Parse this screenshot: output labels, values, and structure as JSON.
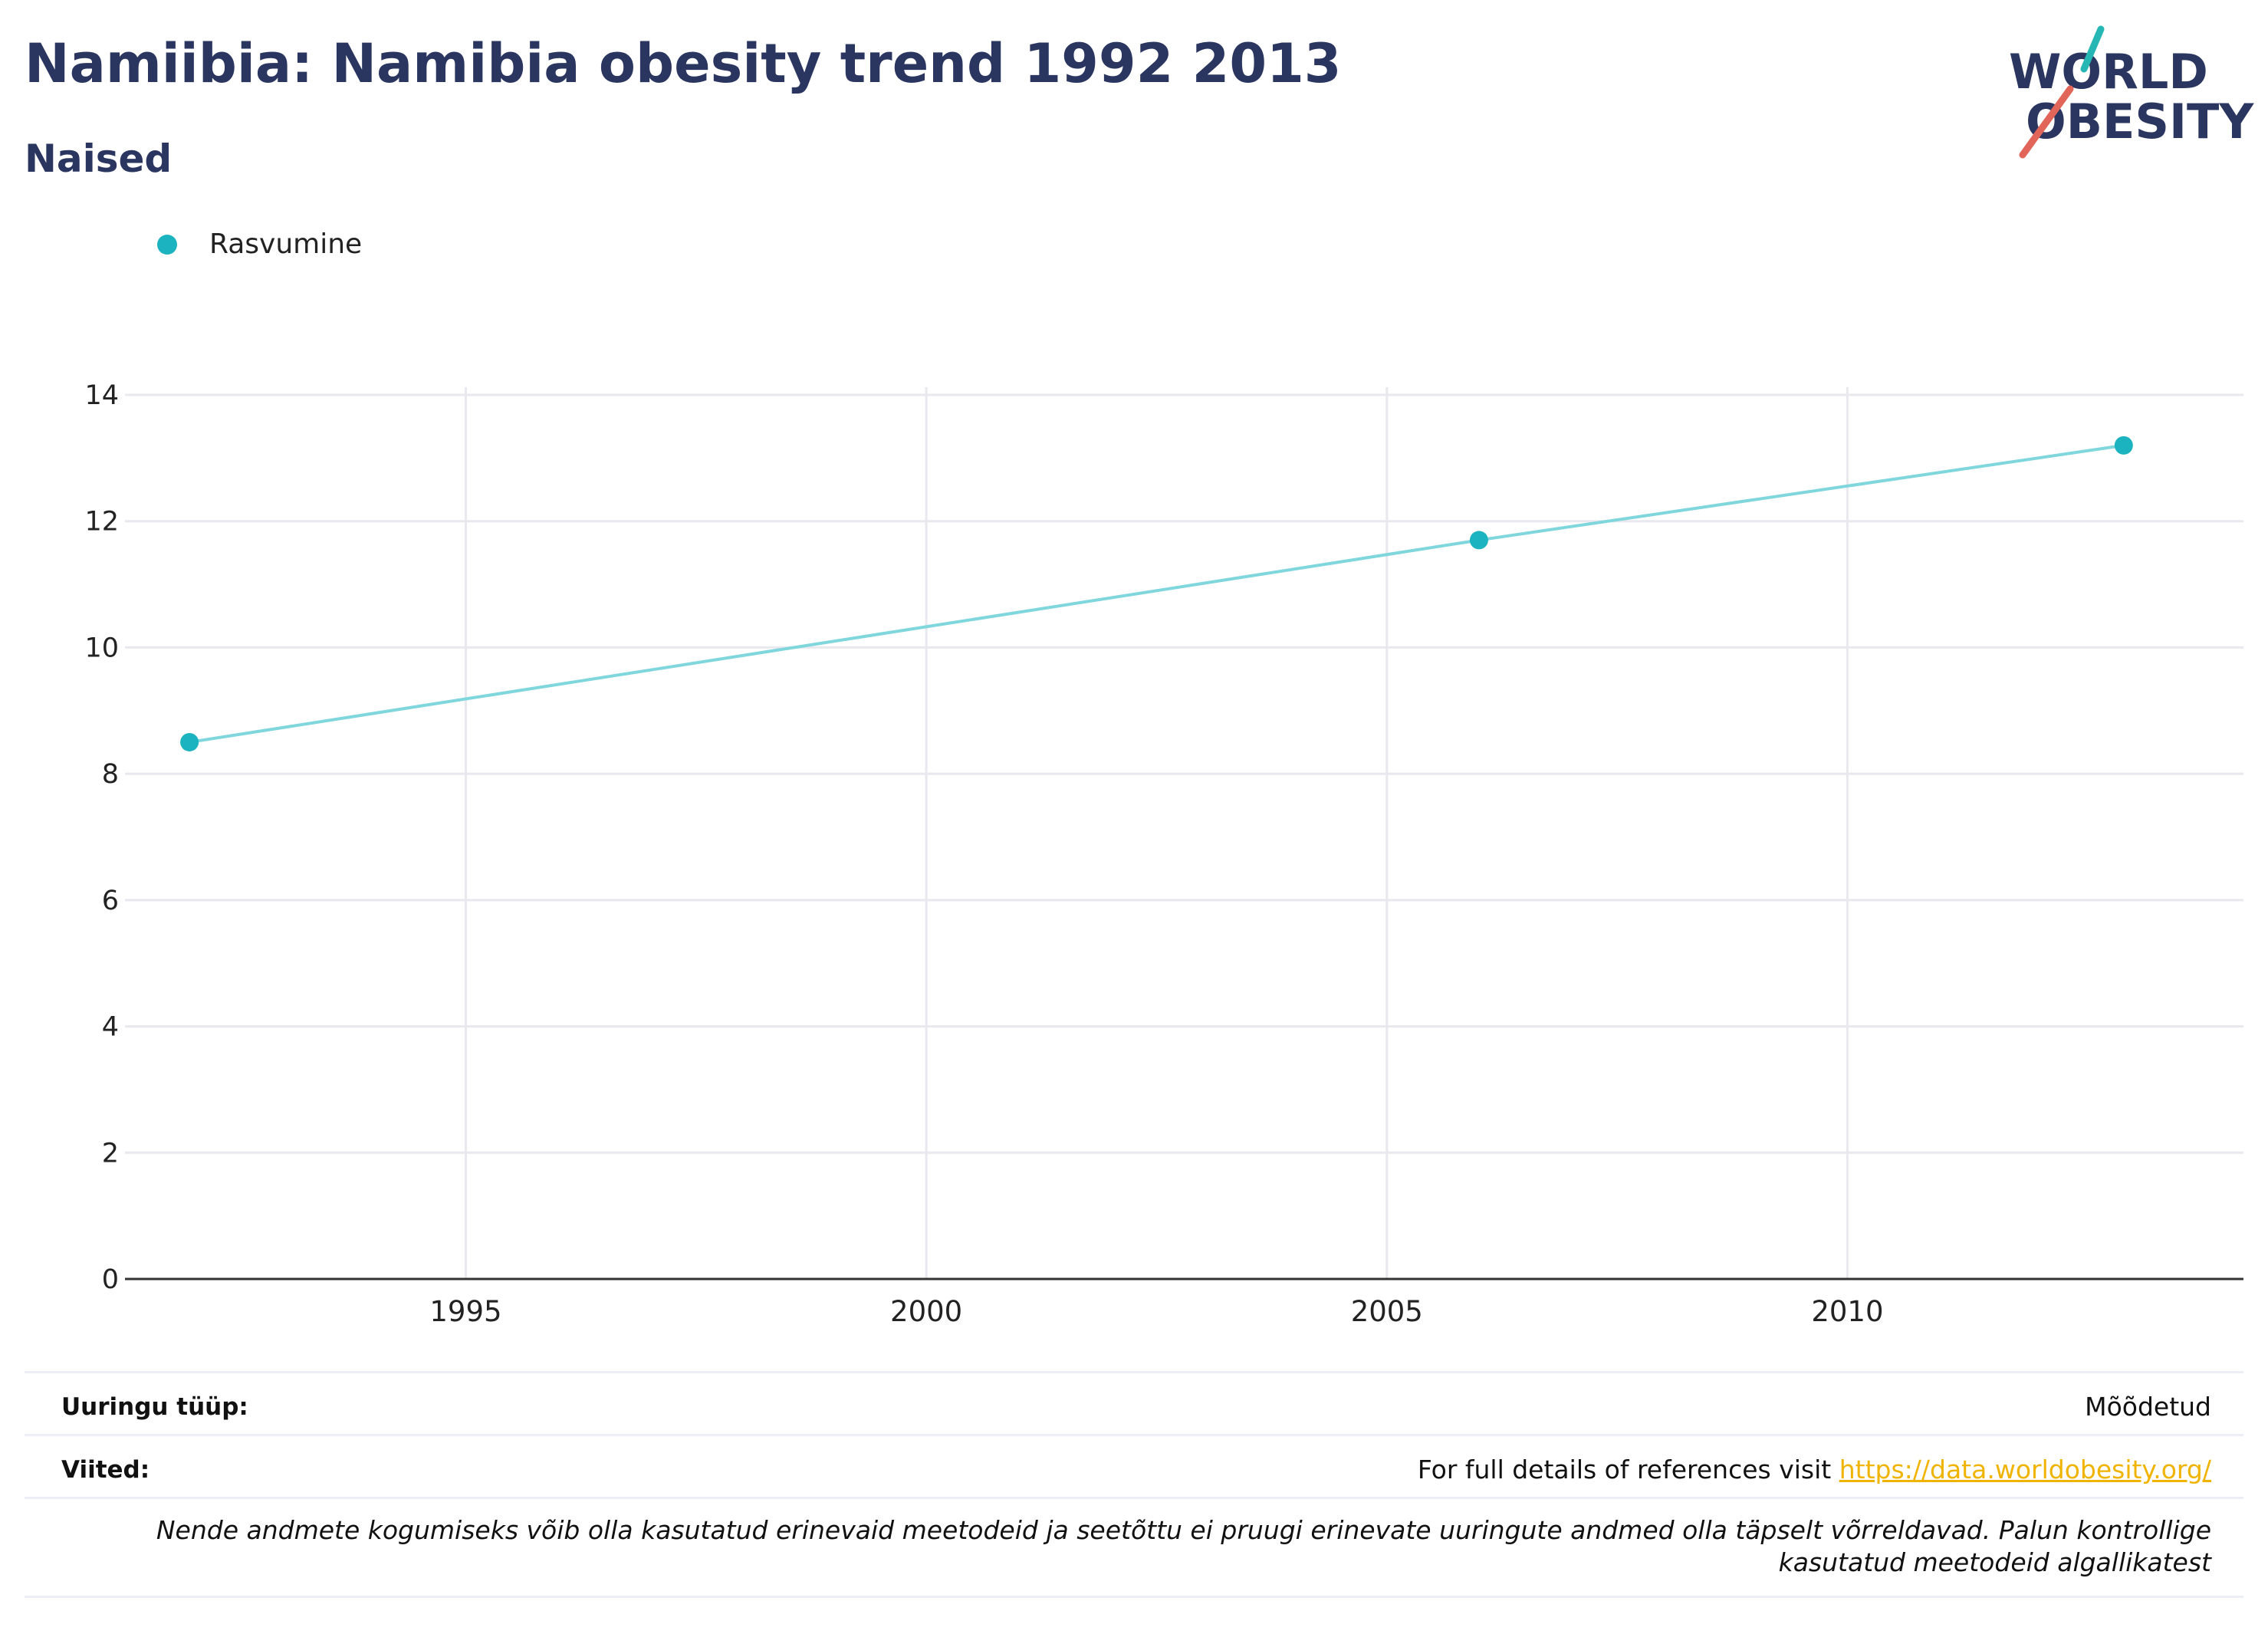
{
  "header": {
    "title": "Namiibia: Namibia obesity trend 1992 2013",
    "subtitle": "Naised"
  },
  "logo": {
    "line1": "WORLD",
    "line2": "OBESITY"
  },
  "legend": {
    "label": "Rasvumine"
  },
  "colors": {
    "series": "#1ab3bf",
    "line": "#7fd6dc",
    "title": "#2a3560",
    "logo_teal": "#26b7b4",
    "logo_red": "#e2655a",
    "link": "#f0b400"
  },
  "chart_data": {
    "type": "line",
    "series": [
      {
        "name": "Rasvumine",
        "x": [
          1992,
          2006,
          2013
        ],
        "y": [
          8.5,
          11.7,
          13.2
        ]
      }
    ],
    "xlim": [
      1991.3,
      2014.3
    ],
    "ylim": [
      0,
      14
    ],
    "x_ticks": [
      1995,
      2000,
      2005,
      2010
    ],
    "y_ticks": [
      0,
      2,
      4,
      6,
      8,
      10,
      12,
      14
    ],
    "grid": true,
    "legend_position": "top-left",
    "xlabel": "",
    "ylabel": ""
  },
  "footer": {
    "survey_type_label": "Uuringu tüüp:",
    "survey_type_value": "Mõõdetud",
    "references_label": "Viited:",
    "references_text": "For full details of references visit ",
    "references_link": "https://data.worldobesity.org/",
    "note": "Nende andmete kogumiseks võib olla kasutatud erinevaid meetodeid ja seetõttu ei pruugi erinevate uuringute andmed olla täpselt võrreldavad. Palun kontrollige kasutatud meetodeid algallikatest"
  }
}
